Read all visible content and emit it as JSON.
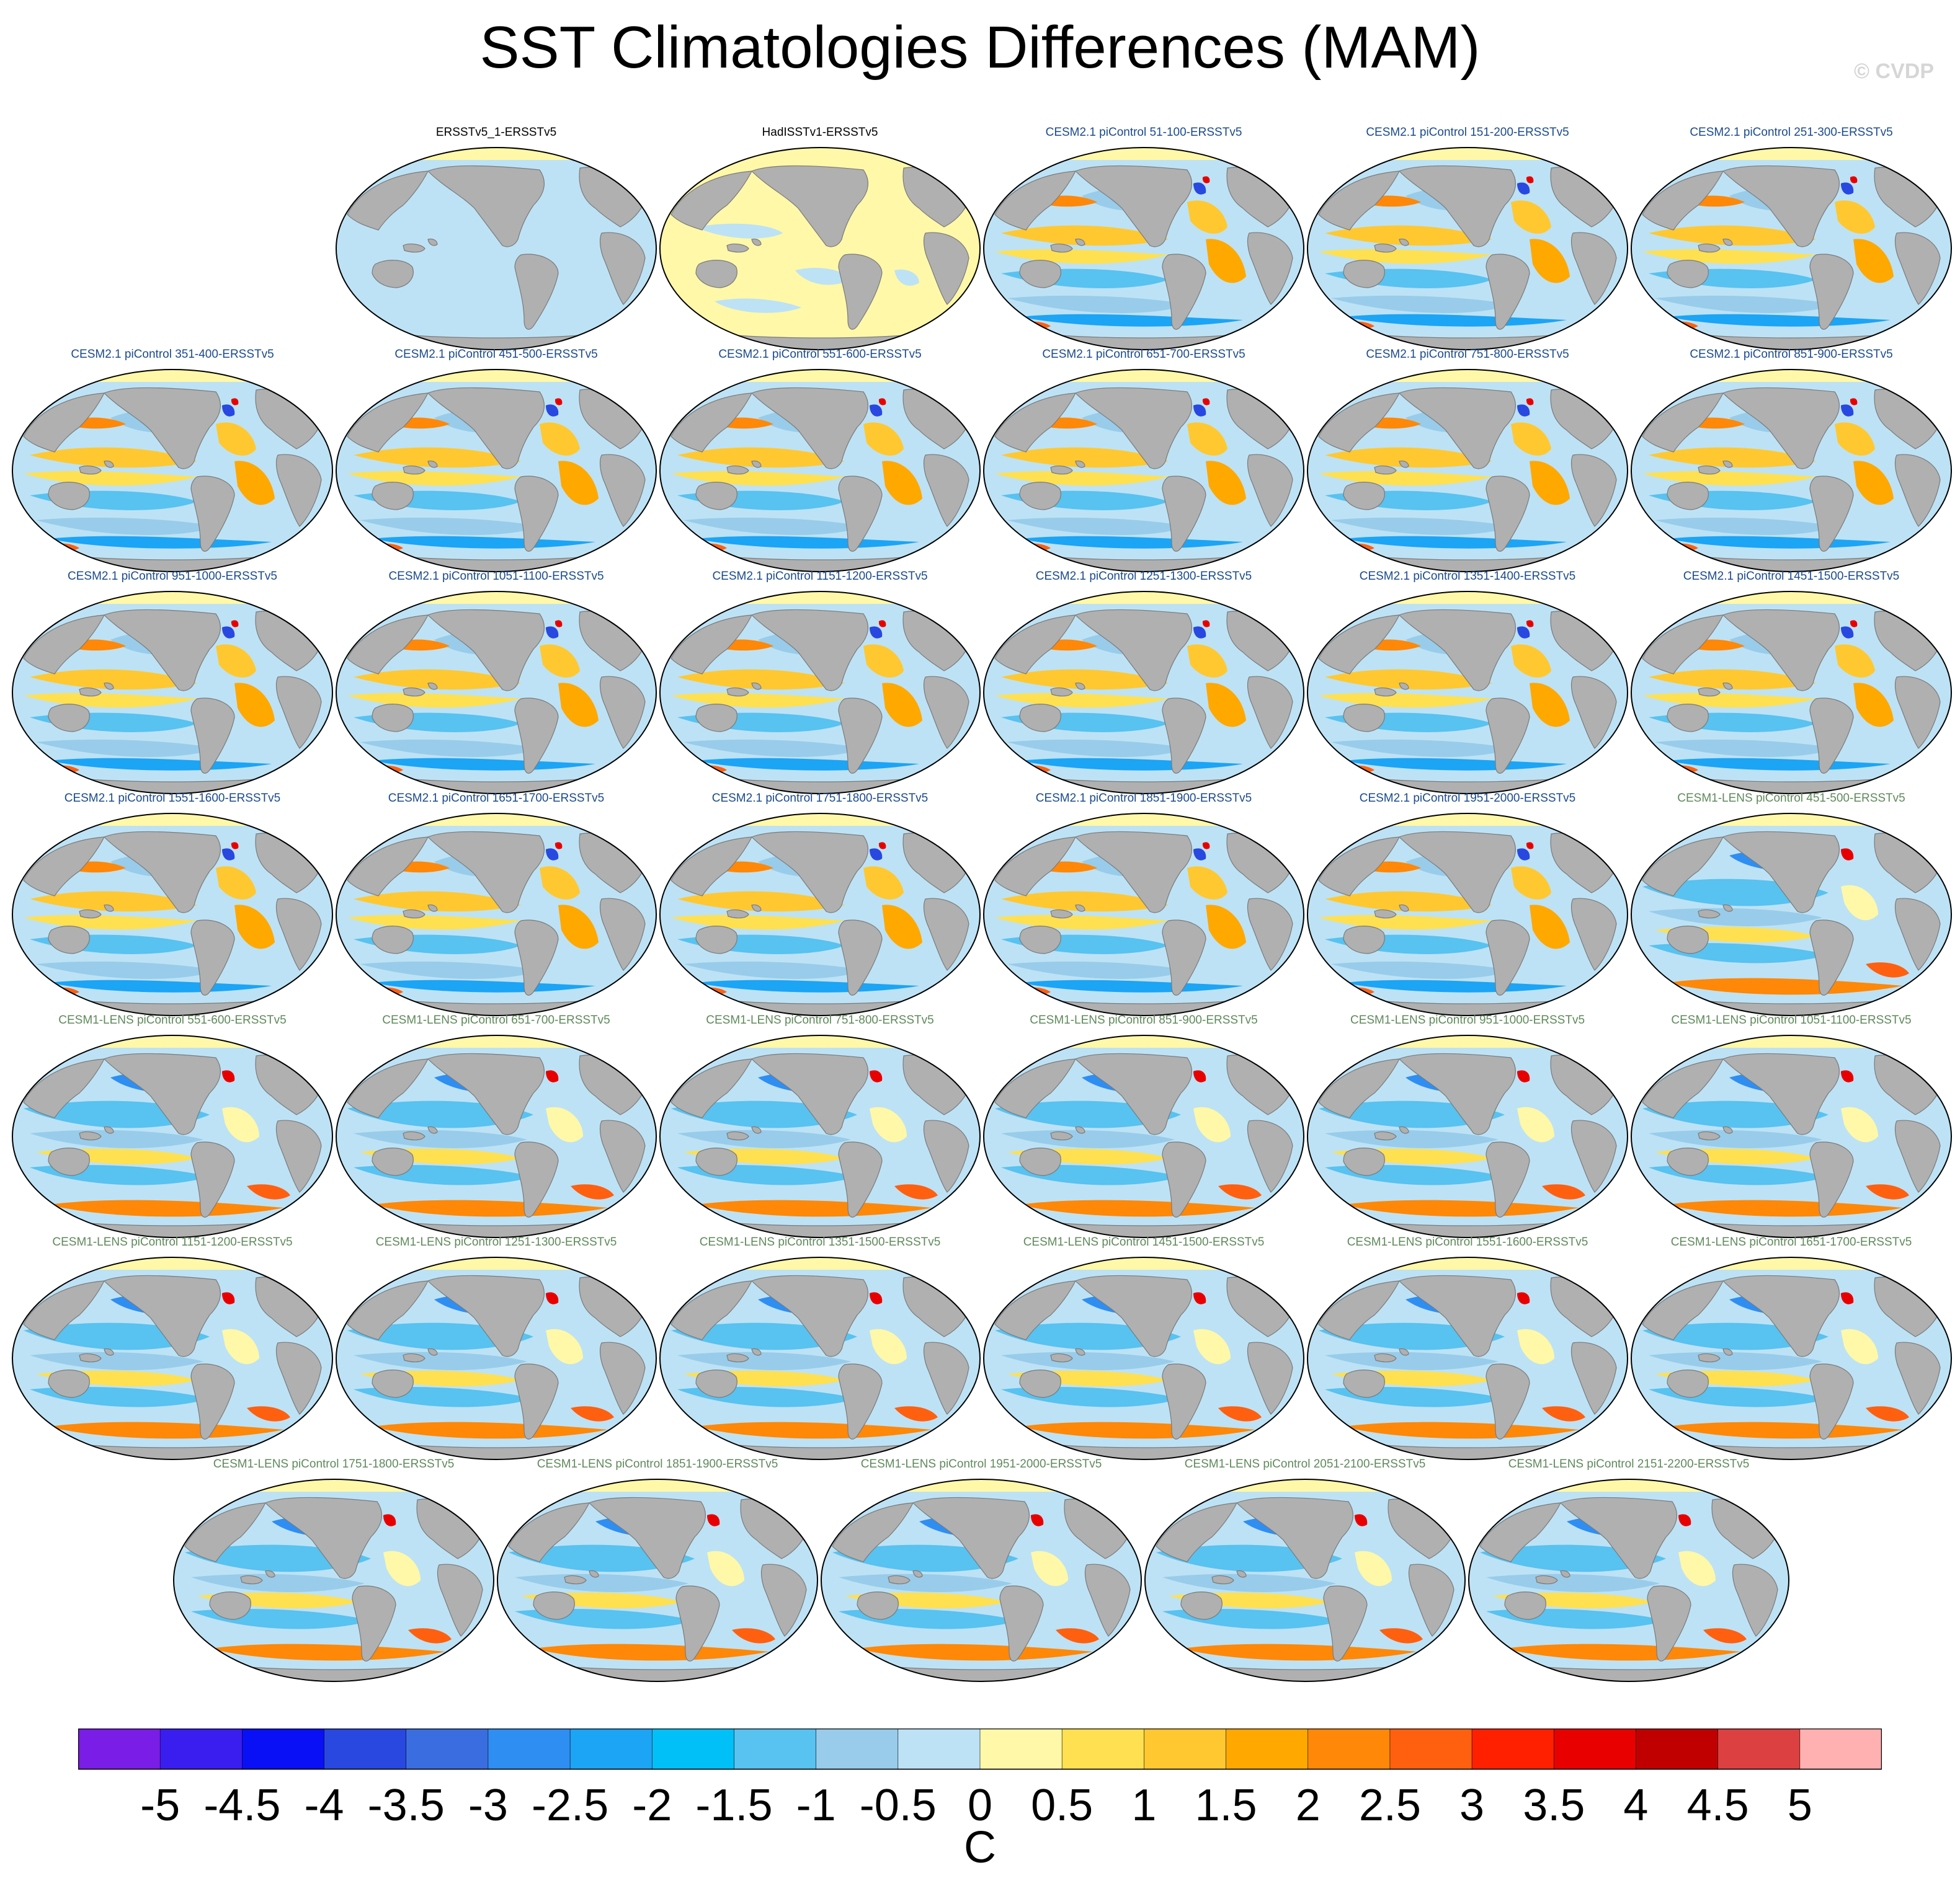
{
  "title": "SST Climatologies Differences (MAM)",
  "credit": "© CVDP",
  "label_colors": {
    "obs": "#000000",
    "cesm2": "#1a4a8c",
    "cesm1": "#5e8a5a"
  },
  "map_colors": {
    "land": "#b0b0b0",
    "coast": "#7a7a7a",
    "outline": "#000000"
  },
  "panels": [
    {
      "label": "ERSSTv5_1-ERSSTv5",
      "group": "obs",
      "style": "flat"
    },
    {
      "label": "HadISSTv1-ERSSTv5",
      "group": "obs",
      "style": "pale"
    },
    {
      "label": "CESM2.1 piControl 51-100-ERSSTv5",
      "group": "cesm2",
      "style": "cesm2"
    },
    {
      "label": "CESM2.1 piControl 151-200-ERSSTv5",
      "group": "cesm2",
      "style": "cesm2"
    },
    {
      "label": "CESM2.1 piControl 251-300-ERSSTv5",
      "group": "cesm2",
      "style": "cesm2"
    },
    {
      "label": "CESM2.1 piControl 351-400-ERSSTv5",
      "group": "cesm2",
      "style": "cesm2"
    },
    {
      "label": "CESM2.1 piControl 451-500-ERSSTv5",
      "group": "cesm2",
      "style": "cesm2"
    },
    {
      "label": "CESM2.1 piControl 551-600-ERSSTv5",
      "group": "cesm2",
      "style": "cesm2"
    },
    {
      "label": "CESM2.1 piControl 651-700-ERSSTv5",
      "group": "cesm2",
      "style": "cesm2"
    },
    {
      "label": "CESM2.1 piControl 751-800-ERSSTv5",
      "group": "cesm2",
      "style": "cesm2"
    },
    {
      "label": "CESM2.1 piControl 851-900-ERSSTv5",
      "group": "cesm2",
      "style": "cesm2"
    },
    {
      "label": "CESM2.1 piControl 951-1000-ERSSTv5",
      "group": "cesm2",
      "style": "cesm2"
    },
    {
      "label": "CESM2.1 piControl 1051-1100-ERSSTv5",
      "group": "cesm2",
      "style": "cesm2"
    },
    {
      "label": "CESM2.1 piControl 1151-1200-ERSSTv5",
      "group": "cesm2",
      "style": "cesm2"
    },
    {
      "label": "CESM2.1 piControl 1251-1300-ERSSTv5",
      "group": "cesm2",
      "style": "cesm2"
    },
    {
      "label": "CESM2.1 piControl 1351-1400-ERSSTv5",
      "group": "cesm2",
      "style": "cesm2"
    },
    {
      "label": "CESM2.1 piControl 1451-1500-ERSSTv5",
      "group": "cesm2",
      "style": "cesm2"
    },
    {
      "label": "CESM2.1 piControl 1551-1600-ERSSTv5",
      "group": "cesm2",
      "style": "cesm2"
    },
    {
      "label": "CESM2.1 piControl 1651-1700-ERSSTv5",
      "group": "cesm2",
      "style": "cesm2"
    },
    {
      "label": "CESM2.1 piControl 1751-1800-ERSSTv5",
      "group": "cesm2",
      "style": "cesm2"
    },
    {
      "label": "CESM2.1 piControl 1851-1900-ERSSTv5",
      "group": "cesm2",
      "style": "cesm2"
    },
    {
      "label": "CESM2.1 piControl 1951-2000-ERSSTv5",
      "group": "cesm2",
      "style": "cesm2"
    },
    {
      "label": "CESM1-LENS piControl 451-500-ERSSTv5",
      "group": "cesm1",
      "style": "cesm1"
    },
    {
      "label": "CESM1-LENS piControl 551-600-ERSSTv5",
      "group": "cesm1",
      "style": "cesm1"
    },
    {
      "label": "CESM1-LENS piControl 651-700-ERSSTv5",
      "group": "cesm1",
      "style": "cesm1"
    },
    {
      "label": "CESM1-LENS piControl 751-800-ERSSTv5",
      "group": "cesm1",
      "style": "cesm1"
    },
    {
      "label": "CESM1-LENS piControl 851-900-ERSSTv5",
      "group": "cesm1",
      "style": "cesm1"
    },
    {
      "label": "CESM1-LENS piControl 951-1000-ERSSTv5",
      "group": "cesm1",
      "style": "cesm1"
    },
    {
      "label": "CESM1-LENS piControl 1051-1100-ERSSTv5",
      "group": "cesm1",
      "style": "cesm1"
    },
    {
      "label": "CESM1-LENS piControl 1151-1200-ERSSTv5",
      "group": "cesm1",
      "style": "cesm1"
    },
    {
      "label": "CESM1-LENS piControl 1251-1300-ERSSTv5",
      "group": "cesm1",
      "style": "cesm1"
    },
    {
      "label": "CESM1-LENS piControl 1351-1500-ERSSTv5",
      "group": "cesm1",
      "style": "cesm1"
    },
    {
      "label": "CESM1-LENS piControl 1451-1500-ERSSTv5",
      "group": "cesm1",
      "style": "cesm1"
    },
    {
      "label": "CESM1-LENS piControl 1551-1600-ERSSTv5",
      "group": "cesm1",
      "style": "cesm1"
    },
    {
      "label": "CESM1-LENS piControl 1651-1700-ERSSTv5",
      "group": "cesm1",
      "style": "cesm1"
    },
    {
      "label": "CESM1-LENS piControl 1751-1800-ERSSTv5",
      "group": "cesm1",
      "style": "cesm1"
    },
    {
      "label": "CESM1-LENS piControl 1851-1900-ERSSTv5",
      "group": "cesm1",
      "style": "cesm1"
    },
    {
      "label": "CESM1-LENS piControl 1951-2000-ERSSTv5",
      "group": "cesm1",
      "style": "cesm1"
    },
    {
      "label": "CESM1-LENS piControl 2051-2100-ERSSTv5",
      "group": "cesm1",
      "style": "cesm1"
    },
    {
      "label": "CESM1-LENS piControl 2151-2200-ERSSTv5",
      "group": "cesm1",
      "style": "cesm1"
    }
  ],
  "colorbar": {
    "units": "C",
    "tick_labels": [
      "-5",
      "-4.5",
      "-4",
      "-3.5",
      "-3",
      "-2.5",
      "-2",
      "-1.5",
      "-1",
      "-0.5",
      "0",
      "0.5",
      "1",
      "1.5",
      "2",
      "2.5",
      "3",
      "3.5",
      "4",
      "4.5",
      "5"
    ],
    "colors": [
      "#7a1de6",
      "#3a1ef0",
      "#0a10f5",
      "#2848e0",
      "#3a6ee0",
      "#2f8ef2",
      "#1ca4f5",
      "#00c0f8",
      "#58c2f0",
      "#98ccea",
      "#bde2f5",
      "#fff8a8",
      "#ffe050",
      "#ffc830",
      "#ffa800",
      "#ff8808",
      "#ff6010",
      "#ff2000",
      "#e80000",
      "#c00000",
      "#dc4040",
      "#ffb0b0"
    ]
  }
}
